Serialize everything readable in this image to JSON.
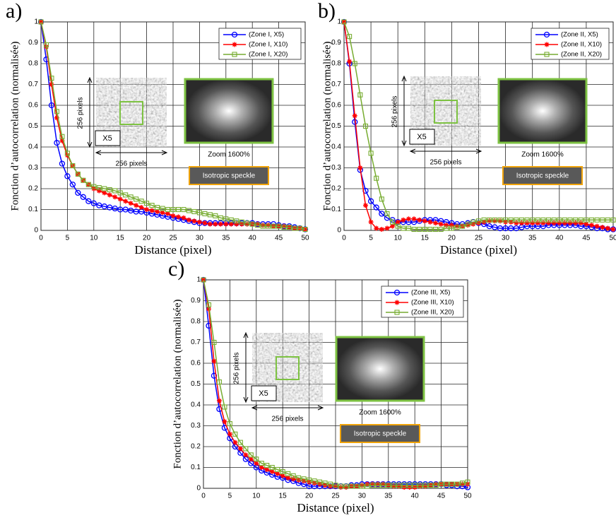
{
  "chart_data": [
    {
      "type": "line",
      "panel": "a)",
      "xlabel": "Distance (pixel)",
      "ylabel": "Fonction d’autocorrelation (normalisée)",
      "xlim": [
        0,
        50
      ],
      "xticks": [
        0,
        5,
        10,
        15,
        20,
        25,
        30,
        35,
        40,
        45,
        50
      ],
      "ylim": [
        0,
        1
      ],
      "yticks": [
        0,
        0.1,
        0.2,
        0.3,
        0.4,
        0.5,
        0.6,
        0.7,
        0.8,
        0.9,
        1
      ],
      "grid": true,
      "legend": "upper right",
      "annotations": {
        "vertical": "256 pixels",
        "horizontal": "256 pixels",
        "scale": "X5",
        "zoom": "Zoom 1600%",
        "speckle": "Isotropic speckle"
      },
      "x": [
        0,
        1,
        2,
        3,
        4,
        5,
        6,
        7,
        8,
        9,
        10,
        11,
        12,
        13,
        14,
        15,
        16,
        17,
        18,
        19,
        20,
        21,
        22,
        23,
        24,
        25,
        26,
        27,
        28,
        29,
        30,
        31,
        32,
        33,
        34,
        35,
        36,
        37,
        38,
        39,
        40,
        41,
        42,
        43,
        44,
        45,
        46,
        47,
        48,
        49,
        50
      ],
      "series": [
        {
          "name": "(Zone I, X5)",
          "color": "#0000ff",
          "marker": "o",
          "values": [
            1,
            0.82,
            0.6,
            0.42,
            0.32,
            0.26,
            0.22,
            0.18,
            0.16,
            0.14,
            0.13,
            0.12,
            0.115,
            0.11,
            0.105,
            0.1,
            0.1,
            0.095,
            0.09,
            0.09,
            0.085,
            0.08,
            0.075,
            0.07,
            0.065,
            0.06,
            0.055,
            0.05,
            0.045,
            0.04,
            0.035,
            0.035,
            0.035,
            0.035,
            0.035,
            0.035,
            0.035,
            0.035,
            0.035,
            0.035,
            0.035,
            0.03,
            0.03,
            0.03,
            0.03,
            0.025,
            0.02,
            0.02,
            0.015,
            0.01,
            0.005
          ]
        },
        {
          "name": "(Zone I, X10)",
          "color": "#ff0000",
          "marker": "*",
          "values": [
            1,
            0.88,
            0.7,
            0.54,
            0.43,
            0.36,
            0.31,
            0.27,
            0.24,
            0.22,
            0.2,
            0.19,
            0.18,
            0.17,
            0.16,
            0.15,
            0.14,
            0.13,
            0.12,
            0.11,
            0.1,
            0.095,
            0.09,
            0.085,
            0.08,
            0.07,
            0.065,
            0.06,
            0.05,
            0.045,
            0.04,
            0.035,
            0.03,
            0.03,
            0.03,
            0.03,
            0.03,
            0.03,
            0.03,
            0.03,
            0.03,
            0.03,
            0.025,
            0.025,
            0.02,
            0.02,
            0.02,
            0.015,
            0.01,
            0.01,
            0.005
          ]
        },
        {
          "name": "(Zone I, X20)",
          "color": "#77ac30",
          "marker": "s",
          "values": [
            1,
            0.89,
            0.73,
            0.57,
            0.45,
            0.37,
            0.31,
            0.27,
            0.24,
            0.22,
            0.21,
            0.205,
            0.2,
            0.195,
            0.19,
            0.18,
            0.17,
            0.16,
            0.15,
            0.14,
            0.13,
            0.12,
            0.11,
            0.105,
            0.1,
            0.1,
            0.1,
            0.1,
            0.095,
            0.09,
            0.085,
            0.08,
            0.075,
            0.07,
            0.06,
            0.055,
            0.05,
            0.045,
            0.04,
            0.035,
            0.03,
            0.025,
            0.02,
            0.02,
            0.02,
            0.02,
            0.015,
            0.015,
            0.01,
            0.01,
            0.005
          ]
        }
      ]
    },
    {
      "type": "line",
      "panel": "b)",
      "xlabel": "Distance (pixel)",
      "ylabel": "Fonction d’autocorrelation (normalisée)",
      "xlim": [
        0,
        50
      ],
      "xticks": [
        0,
        5,
        10,
        15,
        20,
        25,
        30,
        35,
        40,
        45,
        50
      ],
      "ylim": [
        0,
        1
      ],
      "yticks": [
        0,
        0.1,
        0.2,
        0.3,
        0.4,
        0.5,
        0.6,
        0.7,
        0.8,
        0.9,
        1
      ],
      "grid": true,
      "legend": "upper right",
      "annotations": {
        "vertical": "256 pixels",
        "horizontal": "256 pixels",
        "scale": "X5",
        "zoom": "Zoom 1600%",
        "speckle": "Isotropic speckle"
      },
      "x": [
        0,
        1,
        2,
        3,
        4,
        5,
        6,
        7,
        8,
        9,
        10,
        11,
        12,
        13,
        14,
        15,
        16,
        17,
        18,
        19,
        20,
        21,
        22,
        23,
        24,
        25,
        26,
        27,
        28,
        29,
        30,
        31,
        32,
        33,
        34,
        35,
        36,
        37,
        38,
        39,
        40,
        41,
        42,
        43,
        44,
        45,
        46,
        47,
        48,
        49,
        50
      ],
      "series": [
        {
          "name": "(Zone II, X5)",
          "color": "#0000ff",
          "marker": "o",
          "values": [
            1,
            0.8,
            0.52,
            0.29,
            0.19,
            0.14,
            0.11,
            0.08,
            0.06,
            0.05,
            0.04,
            0.04,
            0.04,
            0.04,
            0.045,
            0.05,
            0.05,
            0.05,
            0.045,
            0.04,
            0.035,
            0.03,
            0.03,
            0.035,
            0.04,
            0.035,
            0.03,
            0.02,
            0.015,
            0.01,
            0.01,
            0.01,
            0.01,
            0.015,
            0.02,
            0.02,
            0.02,
            0.02,
            0.025,
            0.025,
            0.025,
            0.025,
            0.025,
            0.025,
            0.02,
            0.02,
            0.015,
            0.01,
            0.01,
            0.005,
            0.005
          ]
        },
        {
          "name": "(Zone II, X10)",
          "color": "#ff0000",
          "marker": "*",
          "values": [
            1,
            0.81,
            0.55,
            0.3,
            0.12,
            0.04,
            0.01,
            0.005,
            0.01,
            0.02,
            0.04,
            0.05,
            0.055,
            0.055,
            0.05,
            0.045,
            0.04,
            0.035,
            0.03,
            0.025,
            0.025,
            0.02,
            0.02,
            0.025,
            0.03,
            0.035,
            0.04,
            0.045,
            0.045,
            0.045,
            0.04,
            0.04,
            0.035,
            0.035,
            0.035,
            0.035,
            0.035,
            0.035,
            0.035,
            0.035,
            0.035,
            0.035,
            0.035,
            0.035,
            0.035,
            0.03,
            0.025,
            0.02,
            0.015,
            0.01,
            0.005
          ]
        },
        {
          "name": "(Zone II, X20)",
          "color": "#77ac30",
          "marker": "s",
          "values": [
            1,
            0.93,
            0.8,
            0.65,
            0.5,
            0.37,
            0.25,
            0.15,
            0.08,
            0.04,
            0.02,
            0.01,
            0.01,
            0.005,
            0.005,
            0.005,
            0.005,
            0.005,
            0.005,
            0.01,
            0.01,
            0.015,
            0.02,
            0.03,
            0.04,
            0.045,
            0.05,
            0.05,
            0.05,
            0.05,
            0.05,
            0.05,
            0.05,
            0.05,
            0.05,
            0.05,
            0.05,
            0.05,
            0.05,
            0.05,
            0.05,
            0.05,
            0.05,
            0.05,
            0.05,
            0.05,
            0.05,
            0.05,
            0.05,
            0.05,
            0.05
          ]
        }
      ]
    },
    {
      "type": "line",
      "panel": "c)",
      "xlabel": "Distance (pixel)",
      "ylabel": "Fonction d’autocorrelation (normalisée)",
      "xlim": [
        0,
        50
      ],
      "xticks": [
        0,
        5,
        10,
        15,
        20,
        25,
        30,
        35,
        40,
        45,
        50
      ],
      "ylim": [
        0,
        1
      ],
      "yticks": [
        0,
        0.1,
        0.2,
        0.3,
        0.4,
        0.5,
        0.6,
        0.7,
        0.8,
        0.9,
        1
      ],
      "grid": true,
      "legend": "upper right",
      "annotations": {
        "vertical": "256 pixels",
        "horizontal": "256 pixels",
        "scale": "X5",
        "zoom": "Zoom 1600%",
        "speckle": "Isotropic speckle"
      },
      "x": [
        0,
        1,
        2,
        3,
        4,
        5,
        6,
        7,
        8,
        9,
        10,
        11,
        12,
        13,
        14,
        15,
        16,
        17,
        18,
        19,
        20,
        21,
        22,
        23,
        24,
        25,
        26,
        27,
        28,
        29,
        30,
        31,
        32,
        33,
        34,
        35,
        36,
        37,
        38,
        39,
        40,
        41,
        42,
        43,
        44,
        45,
        46,
        47,
        48,
        49,
        50
      ],
      "series": [
        {
          "name": "(Zone III, X5)",
          "color": "#0000ff",
          "marker": "o",
          "values": [
            1,
            0.78,
            0.54,
            0.38,
            0.29,
            0.24,
            0.2,
            0.17,
            0.14,
            0.12,
            0.1,
            0.085,
            0.075,
            0.065,
            0.055,
            0.05,
            0.04,
            0.035,
            0.025,
            0.02,
            0.01,
            0.01,
            0.01,
            0.01,
            0.01,
            0.01,
            0.01,
            0.01,
            0.015,
            0.015,
            0.02,
            0.02,
            0.02,
            0.02,
            0.02,
            0.02,
            0.02,
            0.02,
            0.02,
            0.02,
            0.02,
            0.02,
            0.02,
            0.02,
            0.02,
            0.02,
            0.015,
            0.015,
            0.01,
            0.01,
            0.005
          ]
        },
        {
          "name": "(Zone III, X10)",
          "color": "#ff0000",
          "marker": "*",
          "values": [
            1,
            0.86,
            0.61,
            0.42,
            0.32,
            0.26,
            0.22,
            0.19,
            0.16,
            0.14,
            0.12,
            0.1,
            0.09,
            0.08,
            0.07,
            0.06,
            0.05,
            0.045,
            0.04,
            0.035,
            0.03,
            0.025,
            0.02,
            0.015,
            0.01,
            0.01,
            0.005,
            0.005,
            0.01,
            0.01,
            0.015,
            0.02,
            0.02,
            0.02,
            0.02,
            0.015,
            0.01,
            0.01,
            0.005,
            0.005,
            0.005,
            0.01,
            0.01,
            0.015,
            0.02,
            0.02,
            0.02,
            0.02,
            0.02,
            0.02,
            0.02
          ]
        },
        {
          "name": "(Zone III, X20)",
          "color": "#77ac30",
          "marker": "s",
          "values": [
            1,
            0.88,
            0.7,
            0.51,
            0.39,
            0.31,
            0.26,
            0.22,
            0.19,
            0.16,
            0.14,
            0.12,
            0.11,
            0.1,
            0.09,
            0.08,
            0.07,
            0.06,
            0.05,
            0.045,
            0.04,
            0.035,
            0.03,
            0.025,
            0.02,
            0.015,
            0.01,
            0.01,
            0.01,
            0.01,
            0.01,
            0.01,
            0.015,
            0.015,
            0.015,
            0.015,
            0.015,
            0.015,
            0.015,
            0.015,
            0.015,
            0.015,
            0.015,
            0.015,
            0.015,
            0.02,
            0.02,
            0.02,
            0.02,
            0.025,
            0.03
          ]
        }
      ]
    }
  ]
}
